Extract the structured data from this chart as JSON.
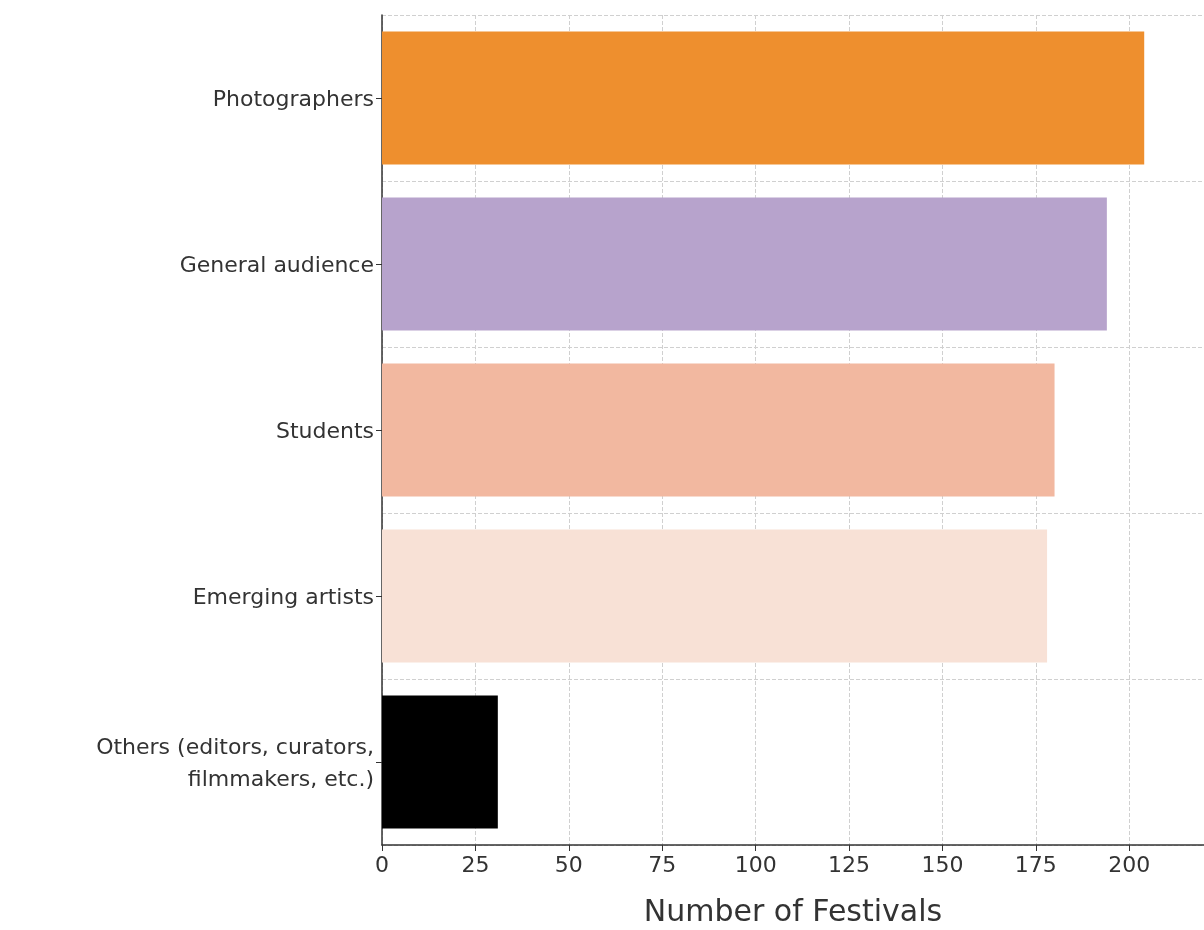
{
  "chart_data": {
    "type": "bar",
    "orientation": "horizontal",
    "xlabel": "Number of Festivals",
    "categories": [
      "Photographers",
      "General audience",
      "Students",
      "Emerging artists",
      "Others (editors, curators,\nfilmmakers, etc.)"
    ],
    "values": [
      204,
      194,
      180,
      178,
      31
    ],
    "colors": [
      "#ee8f2e",
      "#b7a3cc",
      "#f2b8a0",
      "#f8e1d6",
      "#000000"
    ],
    "xlim": [
      0,
      220
    ],
    "xticks": [
      0,
      25,
      50,
      75,
      100,
      125,
      150,
      175,
      200
    ],
    "grid": true
  }
}
